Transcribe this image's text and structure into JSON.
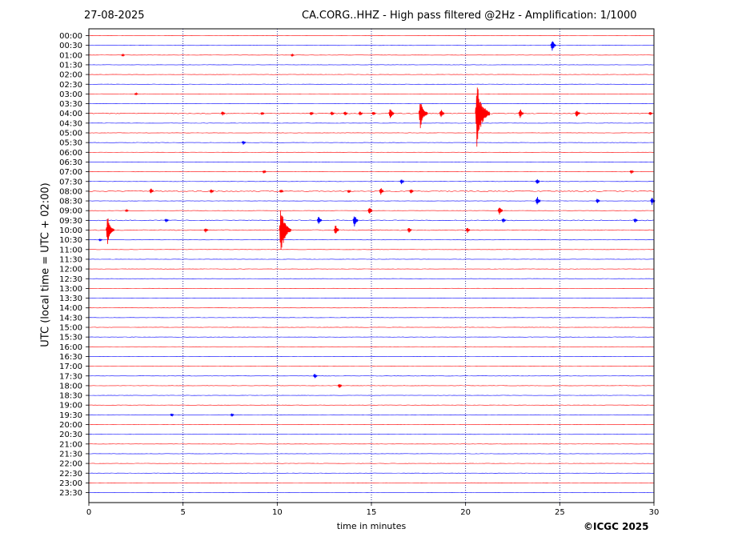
{
  "header": {
    "date": "27-08-2025",
    "title": "CA.CORG..HHZ - High pass filtered @2Hz - Amplification: 1/1000"
  },
  "footer": {
    "copyright": "©ICGC 2025"
  },
  "colors": {
    "trace_a": "#ff0000",
    "trace_b": "#0000ff",
    "grid": "#000080",
    "axis": "#000000"
  },
  "chart_data": {
    "type": "line",
    "xlabel": "time in minutes",
    "ylabel": "UTC (local time = UTC + 02:00)",
    "xlim": [
      0,
      30
    ],
    "xticks": [
      0,
      5,
      10,
      15,
      20,
      25,
      30
    ],
    "vertical_grid": "dotted at each 5-minute tick",
    "row_labels": [
      "00:00",
      "00:30",
      "01:00",
      "01:30",
      "02:00",
      "02:30",
      "03:00",
      "03:30",
      "04:00",
      "04:30",
      "05:00",
      "05:30",
      "06:00",
      "06:30",
      "07:00",
      "07:30",
      "08:00",
      "08:30",
      "09:00",
      "09:30",
      "10:00",
      "10:30",
      "11:00",
      "11:30",
      "12:00",
      "12:30",
      "13:00",
      "13:30",
      "14:00",
      "14:30",
      "15:00",
      "15:30",
      "16:00",
      "16:30",
      "17:00",
      "17:30",
      "18:00",
      "18:30",
      "19:00",
      "19:30",
      "20:00",
      "20:30",
      "21:00",
      "21:30",
      "22:00",
      "22:30",
      "23:00",
      "23:30"
    ],
    "trace_colors": "alternating red / blue starting with red at 00:00",
    "events": [
      {
        "row": "00:30",
        "minute": 24.6,
        "amplitude": 0.7
      },
      {
        "row": "01:00",
        "minute": 1.8,
        "amplitude": 0.15
      },
      {
        "row": "01:00",
        "minute": 10.8,
        "amplitude": 0.15
      },
      {
        "row": "03:00",
        "minute": 2.5,
        "amplitude": 0.15
      },
      {
        "row": "04:00",
        "minute": 7.1,
        "amplitude": 0.25
      },
      {
        "row": "04:00",
        "minute": 9.2,
        "amplitude": 0.2
      },
      {
        "row": "04:00",
        "minute": 11.8,
        "amplitude": 0.25
      },
      {
        "row": "04:00",
        "minute": 12.9,
        "amplitude": 0.3
      },
      {
        "row": "04:00",
        "minute": 13.6,
        "amplitude": 0.3
      },
      {
        "row": "04:00",
        "minute": 14.4,
        "amplitude": 0.3
      },
      {
        "row": "04:00",
        "minute": 15.1,
        "amplitude": 0.25
      },
      {
        "row": "04:00",
        "minute": 16.0,
        "amplitude": 0.7
      },
      {
        "row": "04:00",
        "minute": 17.6,
        "amplitude": 1.8
      },
      {
        "row": "04:00",
        "minute": 18.7,
        "amplitude": 0.5
      },
      {
        "row": "04:00",
        "minute": 20.6,
        "amplitude": 3.6
      },
      {
        "row": "04:00",
        "minute": 22.9,
        "amplitude": 0.6
      },
      {
        "row": "04:00",
        "minute": 25.9,
        "amplitude": 0.5
      },
      {
        "row": "04:00",
        "minute": 29.8,
        "amplitude": 0.2
      },
      {
        "row": "05:30",
        "minute": 8.2,
        "amplitude": 0.25
      },
      {
        "row": "07:00",
        "minute": 9.3,
        "amplitude": 0.2
      },
      {
        "row": "07:00",
        "minute": 28.8,
        "amplitude": 0.25
      },
      {
        "row": "07:30",
        "minute": 16.6,
        "amplitude": 0.35
      },
      {
        "row": "07:30",
        "minute": 23.8,
        "amplitude": 0.35
      },
      {
        "row": "08:00",
        "minute": 3.3,
        "amplitude": 0.35
      },
      {
        "row": "08:00",
        "minute": 6.5,
        "amplitude": 0.3
      },
      {
        "row": "08:00",
        "minute": 10.2,
        "amplitude": 0.25
      },
      {
        "row": "08:00",
        "minute": 13.8,
        "amplitude": 0.2
      },
      {
        "row": "08:00",
        "minute": 15.5,
        "amplitude": 0.45
      },
      {
        "row": "08:00",
        "minute": 17.1,
        "amplitude": 0.3
      },
      {
        "row": "08:30",
        "minute": 23.8,
        "amplitude": 0.55
      },
      {
        "row": "08:30",
        "minute": 27.0,
        "amplitude": 0.3
      },
      {
        "row": "08:30",
        "minute": 29.9,
        "amplitude": 0.45
      },
      {
        "row": "09:00",
        "minute": 2.0,
        "amplitude": 0.15
      },
      {
        "row": "09:00",
        "minute": 14.9,
        "amplitude": 0.45
      },
      {
        "row": "09:00",
        "minute": 21.8,
        "amplitude": 0.55
      },
      {
        "row": "09:30",
        "minute": 4.1,
        "amplitude": 0.25
      },
      {
        "row": "09:30",
        "minute": 12.2,
        "amplitude": 0.5
      },
      {
        "row": "09:30",
        "minute": 14.1,
        "amplitude": 0.7
      },
      {
        "row": "09:30",
        "minute": 22.0,
        "amplitude": 0.3
      },
      {
        "row": "09:30",
        "minute": 29.0,
        "amplitude": 0.3
      },
      {
        "row": "10:00",
        "minute": 1.0,
        "amplitude": 1.6
      },
      {
        "row": "10:00",
        "minute": 6.2,
        "amplitude": 0.3
      },
      {
        "row": "10:00",
        "minute": 10.2,
        "amplitude": 2.7
      },
      {
        "row": "10:00",
        "minute": 10.4,
        "amplitude": 1.1
      },
      {
        "row": "10:00",
        "minute": 13.1,
        "amplitude": 0.6
      },
      {
        "row": "10:00",
        "minute": 17.0,
        "amplitude": 0.35
      },
      {
        "row": "10:00",
        "minute": 20.1,
        "amplitude": 0.3
      },
      {
        "row": "10:30",
        "minute": 0.6,
        "amplitude": 0.15
      },
      {
        "row": "17:30",
        "minute": 12.0,
        "amplitude": 0.3
      },
      {
        "row": "18:00",
        "minute": 13.3,
        "amplitude": 0.3
      },
      {
        "row": "19:30",
        "minute": 4.4,
        "amplitude": 0.2
      },
      {
        "row": "19:30",
        "minute": 7.6,
        "amplitude": 0.2
      }
    ]
  }
}
